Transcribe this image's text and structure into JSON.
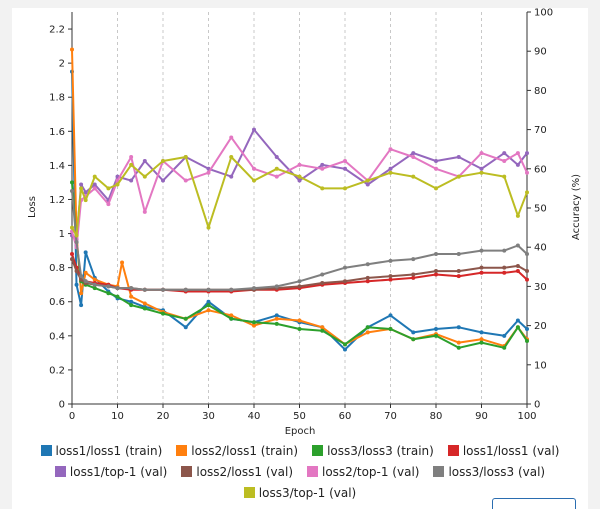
{
  "chart_data": {
    "type": "line",
    "xlabel": "Epoch",
    "ylabel": "Loss",
    "y2label": "Accuracy (%)",
    "xlim": [
      0,
      100
    ],
    "ylim": [
      0,
      2.3
    ],
    "y2lim": [
      0,
      100
    ],
    "xticks": [
      "0",
      "10",
      "20",
      "30",
      "40",
      "50",
      "60",
      "70",
      "80",
      "90",
      "100"
    ],
    "yticks": [
      "0",
      "0.2",
      "0.4",
      "0.6",
      "0.8",
      "1",
      "1.2",
      "1.4",
      "1.6",
      "1.8",
      "2",
      "2.2"
    ],
    "y2ticks": [
      "0",
      "10",
      "20",
      "30",
      "40",
      "50",
      "60",
      "70",
      "80",
      "90",
      "100"
    ],
    "grid": "vertical-dashed-every-10",
    "legend_position": "bottom",
    "series": [
      {
        "name": "loss1/loss1 (train)",
        "axis": "left",
        "color": "#1f77b4",
        "x": [
          0,
          1,
          2,
          3,
          5,
          8,
          10,
          13,
          16,
          20,
          25,
          30,
          35,
          40,
          45,
          50,
          55,
          60,
          65,
          70,
          75,
          80,
          85,
          90,
          95,
          98,
          100
        ],
        "y": [
          1.95,
          0.7,
          0.58,
          0.89,
          0.74,
          0.66,
          0.62,
          0.6,
          0.57,
          0.55,
          0.45,
          0.6,
          0.5,
          0.48,
          0.52,
          0.48,
          0.45,
          0.32,
          0.45,
          0.52,
          0.42,
          0.44,
          0.45,
          0.42,
          0.4,
          0.49,
          0.44
        ]
      },
      {
        "name": "loss2/loss1 (train)",
        "axis": "left",
        "color": "#ff7f0e",
        "x": [
          0,
          1,
          2,
          3,
          5,
          8,
          10,
          11,
          13,
          16,
          20,
          25,
          30,
          35,
          40,
          45,
          50,
          55,
          60,
          65,
          70,
          75,
          80,
          85,
          90,
          95,
          98,
          100
        ],
        "y": [
          2.08,
          1.0,
          0.65,
          0.77,
          0.73,
          0.7,
          0.69,
          0.83,
          0.63,
          0.59,
          0.54,
          0.5,
          0.55,
          0.52,
          0.46,
          0.5,
          0.49,
          0.45,
          0.35,
          0.42,
          0.44,
          0.38,
          0.41,
          0.36,
          0.38,
          0.34,
          0.45,
          0.38
        ]
      },
      {
        "name": "loss3/loss3 (train)",
        "axis": "left",
        "color": "#2ca02c",
        "x": [
          0,
          1,
          2,
          3,
          5,
          8,
          10,
          13,
          16,
          20,
          25,
          30,
          35,
          40,
          45,
          50,
          55,
          60,
          65,
          70,
          75,
          80,
          85,
          90,
          95,
          98,
          100
        ],
        "y": [
          1.3,
          0.95,
          0.72,
          0.7,
          0.68,
          0.65,
          0.63,
          0.58,
          0.56,
          0.53,
          0.5,
          0.58,
          0.5,
          0.48,
          0.47,
          0.44,
          0.43,
          0.35,
          0.45,
          0.44,
          0.38,
          0.4,
          0.33,
          0.36,
          0.33,
          0.45,
          0.37
        ]
      },
      {
        "name": "loss1/loss1 (val)",
        "axis": "left",
        "color": "#d62728",
        "x": [
          0,
          1,
          2,
          3,
          5,
          8,
          10,
          13,
          16,
          20,
          25,
          30,
          35,
          40,
          45,
          50,
          55,
          60,
          65,
          70,
          75,
          80,
          85,
          90,
          95,
          98,
          100
        ],
        "y": [
          0.88,
          0.8,
          0.74,
          0.72,
          0.71,
          0.7,
          0.68,
          0.67,
          0.67,
          0.67,
          0.66,
          0.66,
          0.66,
          0.67,
          0.67,
          0.68,
          0.7,
          0.71,
          0.72,
          0.73,
          0.74,
          0.76,
          0.75,
          0.77,
          0.77,
          0.78,
          0.73
        ]
      },
      {
        "name": "loss1/top-1 (val)",
        "axis": "right",
        "color": "#9467bd",
        "x": [
          0,
          1,
          2,
          3,
          5,
          8,
          10,
          13,
          16,
          20,
          25,
          30,
          35,
          40,
          45,
          50,
          55,
          60,
          65,
          70,
          75,
          80,
          85,
          90,
          95,
          98,
          100
        ],
        "y": [
          43,
          42,
          56,
          54,
          56,
          52,
          58,
          57,
          62,
          57,
          63,
          60,
          58,
          70,
          63,
          57,
          61,
          60,
          56,
          60,
          64,
          62,
          63,
          60,
          64,
          61,
          64
        ]
      },
      {
        "name": "loss2/loss1 (val)",
        "axis": "left",
        "color": "#8c564b",
        "x": [
          0,
          1,
          2,
          3,
          5,
          8,
          10,
          13,
          16,
          20,
          25,
          30,
          35,
          40,
          45,
          50,
          55,
          60,
          65,
          70,
          75,
          80,
          85,
          90,
          95,
          98,
          100
        ],
        "y": [
          0.85,
          0.78,
          0.73,
          0.71,
          0.7,
          0.69,
          0.68,
          0.68,
          0.67,
          0.67,
          0.67,
          0.67,
          0.67,
          0.67,
          0.68,
          0.69,
          0.71,
          0.72,
          0.74,
          0.75,
          0.76,
          0.78,
          0.78,
          0.8,
          0.8,
          0.81,
          0.78
        ]
      },
      {
        "name": "loss2/top-1 (val)",
        "axis": "right",
        "color": "#e377c2",
        "x": [
          0,
          1,
          2,
          3,
          5,
          8,
          10,
          13,
          16,
          20,
          25,
          30,
          35,
          40,
          45,
          50,
          55,
          60,
          65,
          70,
          75,
          80,
          85,
          90,
          95,
          98,
          100
        ],
        "y": [
          44,
          40,
          52,
          53,
          55,
          51,
          57,
          63,
          49,
          62,
          57,
          59,
          68,
          60,
          58,
          61,
          60,
          62,
          57,
          65,
          63,
          60,
          58,
          64,
          62,
          64,
          59
        ]
      },
      {
        "name": "loss3/loss3 (val)",
        "axis": "left",
        "color": "#7f7f7f",
        "x": [
          0,
          1,
          2,
          3,
          5,
          8,
          10,
          13,
          16,
          20,
          25,
          30,
          35,
          40,
          45,
          50,
          55,
          60,
          65,
          70,
          75,
          80,
          85,
          90,
          95,
          98,
          100
        ],
        "y": [
          1.25,
          0.95,
          0.75,
          0.72,
          0.7,
          0.69,
          0.68,
          0.68,
          0.67,
          0.67,
          0.67,
          0.67,
          0.67,
          0.68,
          0.69,
          0.72,
          0.76,
          0.8,
          0.82,
          0.84,
          0.85,
          0.88,
          0.88,
          0.9,
          0.9,
          0.93,
          0.88
        ]
      },
      {
        "name": "loss3/top-1 (val)",
        "axis": "right",
        "color": "#bcbd22",
        "x": [
          0,
          1,
          2,
          3,
          5,
          8,
          10,
          13,
          16,
          20,
          25,
          30,
          35,
          40,
          45,
          50,
          55,
          60,
          65,
          70,
          75,
          80,
          85,
          90,
          95,
          98,
          100
        ],
        "y": [
          45,
          43,
          55,
          52,
          58,
          55,
          56,
          61,
          58,
          62,
          63,
          45,
          63,
          57,
          60,
          58,
          55,
          55,
          57,
          59,
          58,
          55,
          58,
          59,
          58,
          48,
          54
        ]
      }
    ]
  }
}
